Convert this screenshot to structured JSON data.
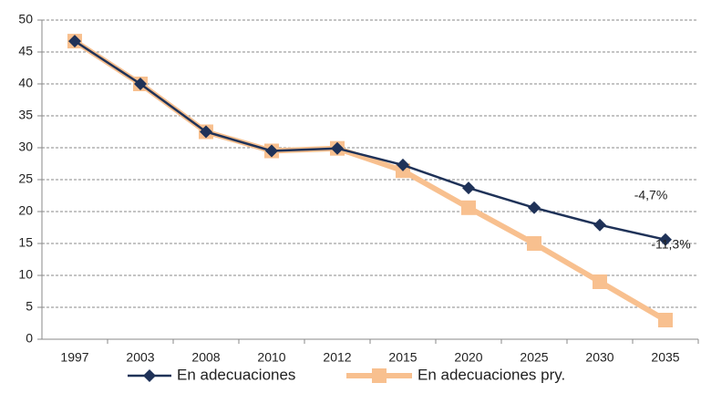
{
  "chart_data": {
    "type": "line",
    "categories": [
      "1997",
      "2003",
      "2008",
      "2010",
      "2012",
      "2015",
      "2020",
      "2025",
      "2030",
      "2035"
    ],
    "series": [
      {
        "name": "En adecuaciones",
        "color": "#1f3258",
        "marker": "diamond",
        "values": [
          46.7,
          40,
          32.5,
          29.5,
          29.9,
          27.3,
          23.7,
          20.6,
          17.9,
          15.6
        ]
      },
      {
        "name": "En adecuaciones pry.",
        "color": "#f8c08f",
        "marker": "square",
        "values": [
          46.7,
          40,
          32.5,
          29.5,
          29.9,
          26.4,
          20.6,
          15,
          9,
          3
        ]
      }
    ],
    "annotations": [
      "-4,7%",
      "-11,3%"
    ],
    "ylim": [
      0,
      50
    ],
    "yticks": [
      0,
      5,
      10,
      15,
      20,
      25,
      30,
      35,
      40,
      45,
      50
    ],
    "grid": true,
    "legend": "bottom"
  }
}
